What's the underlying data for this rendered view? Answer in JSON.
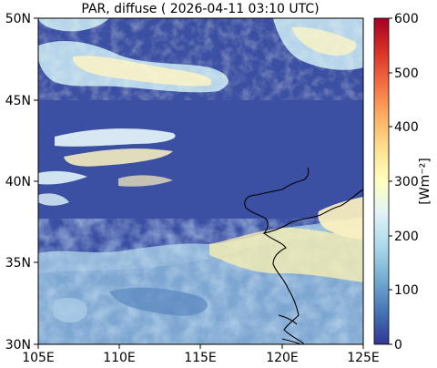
{
  "map": {
    "title": "PAR, diffuse ( 2026-04-11 03:10 UTC)",
    "extent": {
      "lon": [
        105,
        125
      ],
      "lat": [
        30,
        50
      ]
    },
    "x_ticks": [
      "105E",
      "110E",
      "115E",
      "120E",
      "125E"
    ],
    "y_ticks": [
      "30N",
      "35N",
      "40N",
      "45N",
      "50N"
    ],
    "colorbar": {
      "label": "[Wm⁻²]",
      "range": [
        0,
        600
      ],
      "ticks": [
        "0",
        "100",
        "200",
        "300",
        "400",
        "500",
        "600"
      ],
      "colors": [
        "#313695",
        "#4575b4",
        "#74add1",
        "#abd9e9",
        "#e0f3f8",
        "#ffffbf",
        "#fee090",
        "#fdae61",
        "#f46d43",
        "#d73027",
        "#a50026"
      ]
    },
    "ocean_color": "#3b4fa3",
    "coastline_color": "#000000"
  }
}
